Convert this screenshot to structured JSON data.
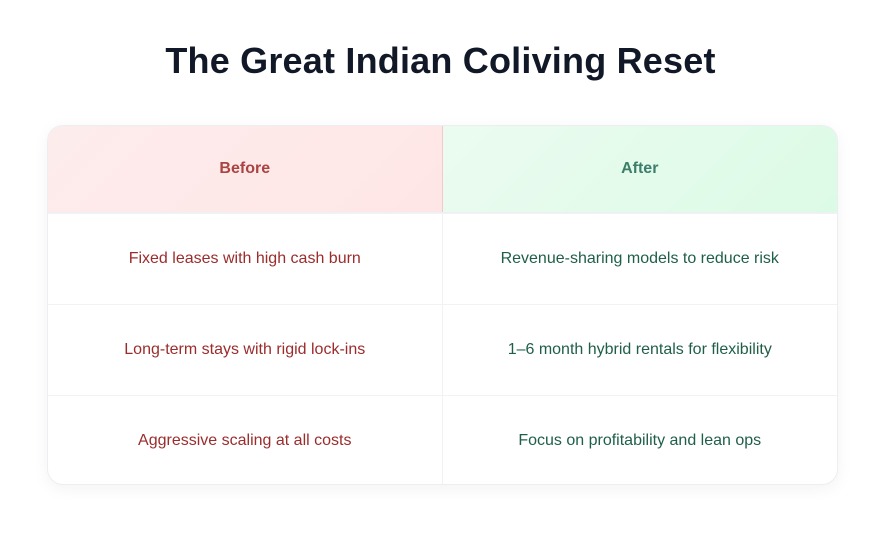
{
  "title": "The Great Indian Coliving Reset",
  "table": {
    "headers": [
      "Before",
      "After"
    ],
    "rows": [
      [
        "Fixed leases with high cash burn",
        "Revenue-sharing models to reduce risk"
      ],
      [
        "Long-term stays with rigid lock-ins",
        "1–6 month hybrid rentals for flexibility"
      ],
      [
        "Aggressive scaling at all costs",
        "Focus on profitability and lean ops"
      ]
    ]
  },
  "colors": {
    "before": "#9b2c2c",
    "after": "#1f5f47",
    "before_bg": "#fdecec",
    "after_bg": "#e3fbea"
  }
}
